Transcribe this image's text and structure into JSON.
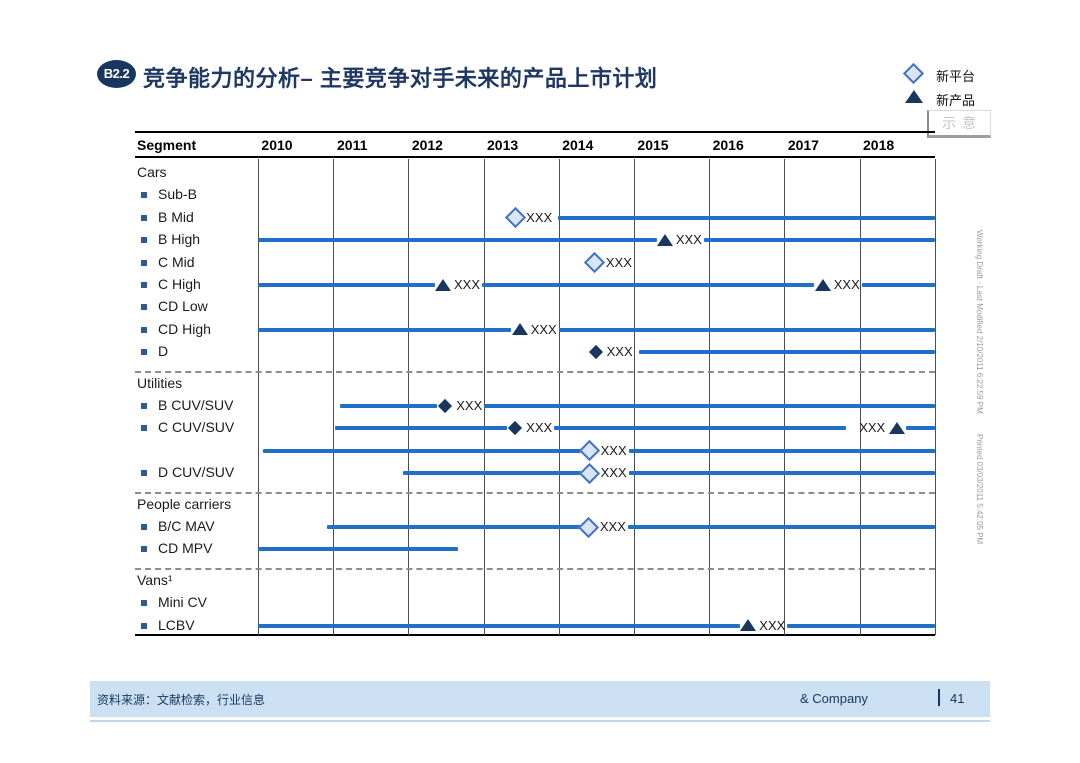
{
  "slide": {
    "badge": "B2.2",
    "title": "竞争能力的分析– 主要竞争对手未来的产品上市计划",
    "stamp": "示意",
    "watermark": {
      "working_draft": "Working Draft - Last Modified 2/10/2011 6:22:59 PM",
      "printed": "Printed 03/03/2011 5:42:05 PM"
    },
    "footer": {
      "source": "资料来源：文献检索，行业信息",
      "company": "& Company",
      "page": "41"
    }
  },
  "legend": {
    "items": [
      {
        "icon": "platform-diamond-icon",
        "label": "新平台"
      },
      {
        "icon": "product-triangle-icon",
        "label": "新产品"
      }
    ]
  },
  "colors": {
    "navy": "#17375E",
    "title_blue": "#1F3864",
    "timeline_blue": "#2070C9",
    "platform_fill": "#DAE5F4",
    "platform_border": "#4472C4",
    "footer_band": "#CCE0F4"
  },
  "chart_data": {
    "type": "gantt-timeline",
    "title": "主要竞争对手未来的产品上市计划",
    "header": "Segment",
    "years": [
      "2010",
      "2011",
      "2012",
      "2013",
      "2014",
      "2015",
      "2016",
      "2017",
      "2018"
    ],
    "x_range_years": [
      2010,
      2019
    ],
    "marker_legend": {
      "platform": "新平台",
      "product": "新产品",
      "product_diamond": "新产品(实心菱形)"
    },
    "note": "bars and marker years are offsets in years from the start of 2010",
    "rows": [
      {
        "kind": "group",
        "label": "Cars"
      },
      {
        "kind": "item",
        "label": "Sub-B"
      },
      {
        "kind": "item",
        "label": "B Mid",
        "bars": [
          [
            3.99,
            9
          ]
        ],
        "markers": [
          {
            "type": "platform",
            "year": 3.42,
            "label": "XXX",
            "side": "right"
          }
        ]
      },
      {
        "kind": "item",
        "label": "B High",
        "bars": [
          [
            0,
            5.3
          ],
          [
            5.93,
            9
          ]
        ],
        "markers": [
          {
            "type": "product",
            "year": 5.41,
            "label": "XXX",
            "side": "right"
          }
        ]
      },
      {
        "kind": "item",
        "label": "C Mid",
        "markers": [
          {
            "type": "platform",
            "year": 4.48,
            "label": "XXX",
            "side": "right"
          }
        ]
      },
      {
        "kind": "item",
        "label": "C High",
        "bars": [
          [
            0,
            2.35
          ],
          [
            2.98,
            7.4
          ],
          [
            8.03,
            9
          ]
        ],
        "markers": [
          {
            "type": "product",
            "year": 2.46,
            "label": "XXX",
            "side": "right"
          },
          {
            "type": "product",
            "year": 7.51,
            "label": "XXX",
            "side": "right"
          }
        ]
      },
      {
        "kind": "item",
        "label": "CD Low"
      },
      {
        "kind": "item",
        "label": "CD High",
        "bars": [
          [
            0,
            3.37
          ],
          [
            4.0,
            9
          ]
        ],
        "markers": [
          {
            "type": "product",
            "year": 3.48,
            "label": "XXX",
            "side": "right"
          }
        ]
      },
      {
        "kind": "item",
        "label": "D",
        "bars": [
          [
            5.07,
            9
          ]
        ],
        "markers": [
          {
            "type": "product_diamond",
            "year": 4.49,
            "label": "XXX",
            "side": "right"
          }
        ]
      },
      {
        "kind": "divider"
      },
      {
        "kind": "group",
        "label": "Utilities"
      },
      {
        "kind": "item",
        "label": "B CUV/SUV",
        "bars": [
          [
            1.09,
            2.38
          ],
          [
            3.01,
            9
          ]
        ],
        "markers": [
          {
            "type": "product_diamond",
            "year": 2.49,
            "label": "XXX",
            "side": "right"
          }
        ]
      },
      {
        "kind": "item",
        "label": "C CUV/SUV",
        "bars": [
          [
            1.02,
            3.31
          ],
          [
            3.94,
            7.82
          ],
          [
            8.62,
            9
          ]
        ],
        "markers": [
          {
            "type": "product_diamond",
            "year": 3.42,
            "label": "XXX",
            "side": "right"
          },
          {
            "type": "product",
            "year": 8.5,
            "label": "XXX",
            "side": "left"
          }
        ]
      },
      {
        "kind": "item",
        "label": "",
        "bars": [
          [
            0.07,
            4.3
          ],
          [
            4.93,
            9
          ]
        ],
        "markers": [
          {
            "type": "platform",
            "year": 4.41,
            "label": "XXX",
            "side": "right"
          }
        ]
      },
      {
        "kind": "item",
        "label": "D CUV/SUV",
        "bars": [
          [
            1.93,
            4.3
          ],
          [
            4.93,
            9
          ]
        ],
        "markers": [
          {
            "type": "platform",
            "year": 4.41,
            "label": "XXX",
            "side": "right"
          }
        ]
      },
      {
        "kind": "divider"
      },
      {
        "kind": "group",
        "label": "People carriers"
      },
      {
        "kind": "item",
        "label": "B/C MAV",
        "bars": [
          [
            0.92,
            4.29
          ],
          [
            4.92,
            9
          ]
        ],
        "markers": [
          {
            "type": "platform",
            "year": 4.4,
            "label": "XXX",
            "side": "right"
          }
        ]
      },
      {
        "kind": "item",
        "label": "CD MPV",
        "bars": [
          [
            0,
            2.66
          ]
        ]
      },
      {
        "kind": "divider"
      },
      {
        "kind": "group",
        "label": "Vans¹"
      },
      {
        "kind": "item",
        "label": "Mini CV"
      },
      {
        "kind": "item",
        "label": "LCBV",
        "bars": [
          [
            0,
            6.41
          ],
          [
            7.04,
            9
          ]
        ],
        "markers": [
          {
            "type": "product",
            "year": 6.52,
            "label": "XXX",
            "side": "right"
          }
        ]
      }
    ]
  }
}
